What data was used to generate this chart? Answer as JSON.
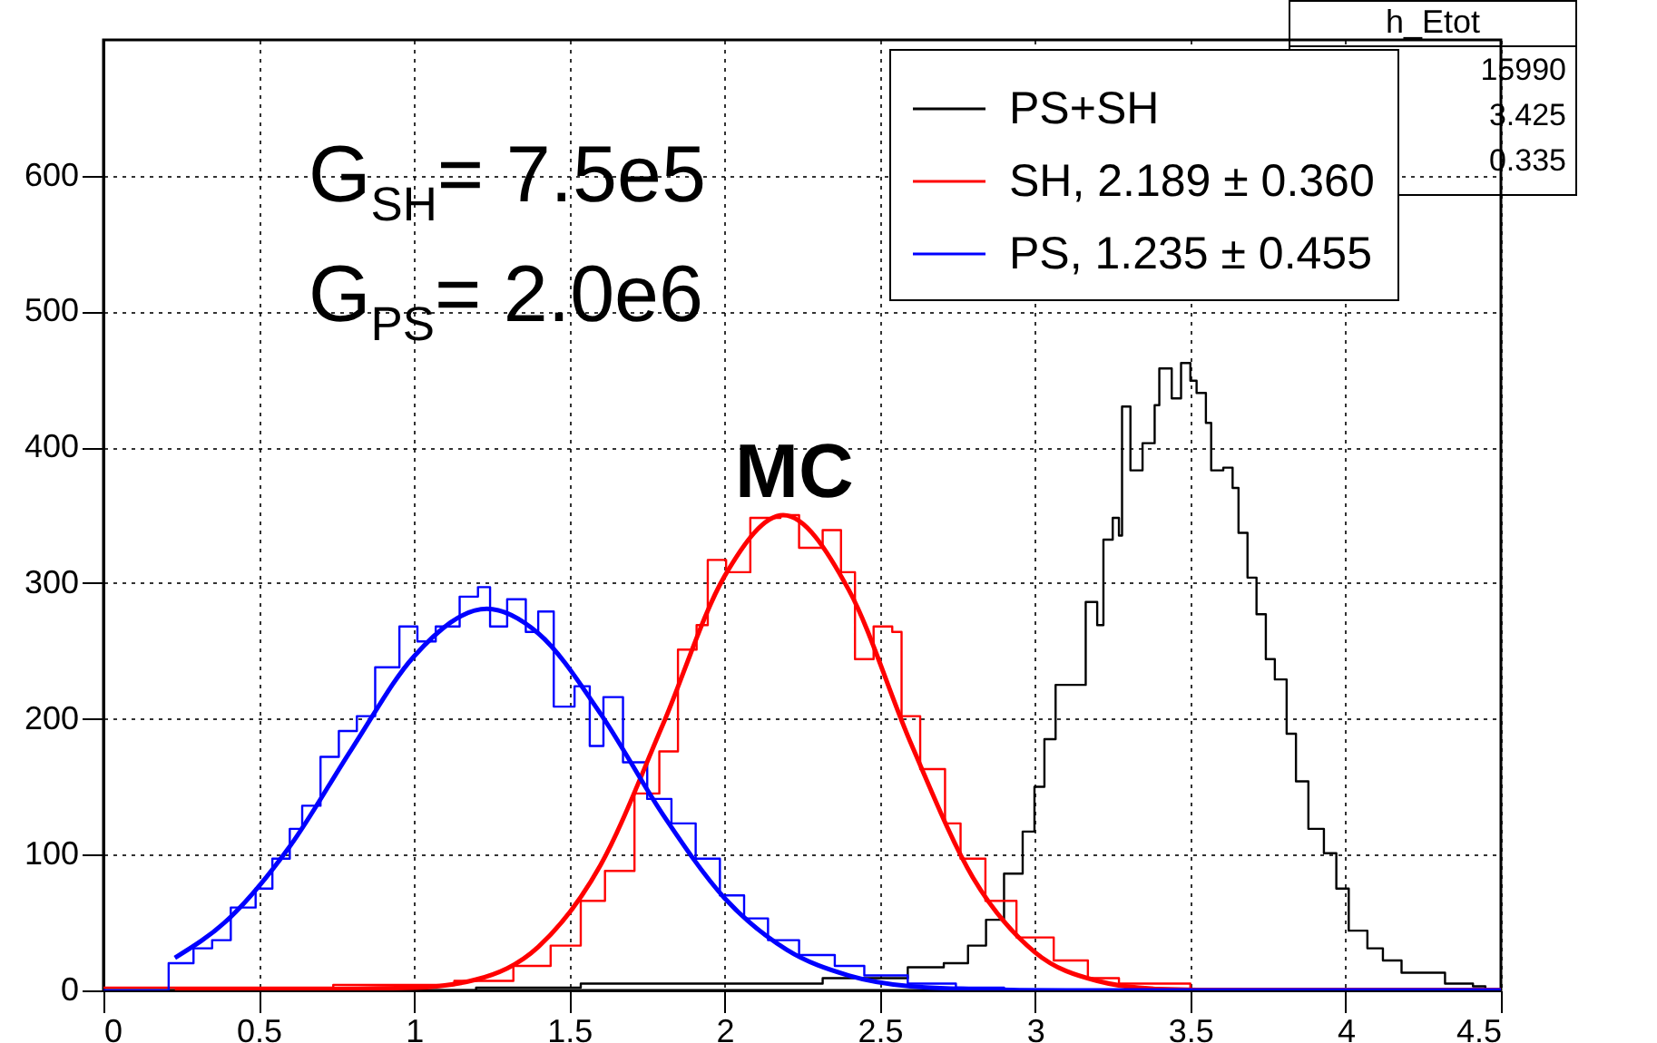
{
  "chart_data": {
    "type": "step",
    "xlim": [
      0,
      4.5
    ],
    "ylim": [
      0,
      700
    ],
    "xticks": [
      0,
      0.5,
      1,
      1.5,
      2,
      2.5,
      3,
      3.5,
      4,
      4.5
    ],
    "yticks": [
      0,
      100,
      200,
      300,
      400,
      500,
      600
    ],
    "grid": true,
    "legend": "top right",
    "annotations": [
      "G$_{SH}$= 7.5e5",
      "G$_{PS}$= 2.0e6",
      "MC",
      "h_Etot",
      "15990",
      "3.425",
      "0.335"
    ],
    "series": [
      {
        "name": "PS+SH",
        "color": "#000000",
        "x": [
          0,
          1.2,
          1.537,
          2.316,
          2.59,
          2.706,
          2.784,
          2.842,
          2.9,
          2.96,
          2.998,
          3.03,
          3.066,
          3.105,
          3.163,
          3.2,
          3.22,
          3.25,
          3.27,
          3.28,
          3.307,
          3.346,
          3.385,
          3.4,
          3.44,
          3.47,
          3.5,
          3.52,
          3.55,
          3.567,
          3.606,
          3.636,
          3.655,
          3.684,
          3.713,
          3.743,
          3.772,
          3.81,
          3.84,
          3.88,
          3.93,
          3.97,
          4.01,
          4.07,
          4.12,
          4.18,
          4.24,
          4.32,
          4.41,
          4.45,
          4.5
        ],
        "values": [
          0,
          2,
          5,
          9,
          17,
          20,
          33,
          52,
          86,
          117,
          150,
          185,
          225,
          225,
          286,
          269,
          332,
          348,
          335,
          430,
          383,
          403,
          431,
          458,
          436,
          462,
          449,
          440,
          418,
          383,
          385,
          370,
          337,
          304,
          277,
          244,
          229,
          189,
          154,
          119,
          101,
          75,
          44,
          31,
          22,
          13,
          13,
          5,
          3,
          0,
          0
        ]
      },
      {
        "color": "#ff0000",
        "x": [
          0,
          0.74,
          1.13,
          1.32,
          1.44,
          1.537,
          1.615,
          1.71,
          1.79,
          1.85,
          1.91,
          1.946,
          2.005,
          2.083,
          2.18,
          2.24,
          2.316,
          2.375,
          2.42,
          2.48,
          2.54,
          2.57,
          2.63,
          2.71,
          2.76,
          2.84,
          2.94,
          3.06,
          3.17,
          3.27,
          3.5,
          4.5
        ],
        "values": [
          2,
          4,
          7,
          18,
          33,
          66,
          88,
          145,
          176,
          251,
          269,
          317,
          308,
          348,
          350,
          326,
          339,
          308,
          244,
          268,
          264,
          202,
          163,
          123,
          97,
          66,
          39,
          22,
          9,
          5,
          1,
          0
        ]
      },
      {
        "color": "#0000ff",
        "x": [
          0,
          0.21,
          0.29,
          0.35,
          0.41,
          0.49,
          0.544,
          0.6,
          0.64,
          0.699,
          0.758,
          0.816,
          0.875,
          0.953,
          1.011,
          1.07,
          1.147,
          1.206,
          1.245,
          1.3,
          1.36,
          1.4,
          1.45,
          1.517,
          1.566,
          1.61,
          1.673,
          1.751,
          1.829,
          1.907,
          1.985,
          2.063,
          2.14,
          2.24,
          2.355,
          2.45,
          2.59,
          2.745,
          2.9,
          4.5
        ],
        "values": [
          0,
          20,
          31,
          37,
          61,
          75,
          97,
          119,
          136,
          172,
          191,
          202,
          238,
          268,
          257,
          268,
          290,
          297,
          268,
          288,
          264,
          279,
          209,
          224,
          180,
          216,
          168,
          141,
          123,
          97,
          70,
          53,
          37,
          26,
          18,
          11,
          5,
          2,
          0,
          0
        ]
      },
      {
        "type": "line",
        "name": "SH, 2.189 ± 0.360",
        "color": "#ff0000",
        "x": [
          0.23,
          1,
          1.2,
          1.4,
          1.6,
          1.8,
          2,
          2.189,
          2.4,
          2.6,
          2.8,
          3,
          3.2,
          3.4,
          3.7,
          4.5
        ],
        "values": [
          0,
          2,
          8,
          32,
          92,
          195,
          305,
          350,
          295,
          182,
          83,
          28,
          7,
          1,
          0,
          0
        ]
      },
      {
        "type": "line",
        "name": "PS, 1.235 ± 0.455",
        "color": "#0000ff",
        "x": [
          0.23,
          0.4,
          0.6,
          0.8,
          1,
          1.235,
          1.4,
          1.6,
          1.8,
          2,
          2.2,
          2.4,
          2.6,
          2.8,
          3.1,
          4.5
        ],
        "values": [
          24,
          52,
          106,
          178,
          246,
          281,
          263,
          204,
          130,
          68,
          30,
          11,
          3,
          1,
          0,
          0
        ]
      }
    ]
  }
}
